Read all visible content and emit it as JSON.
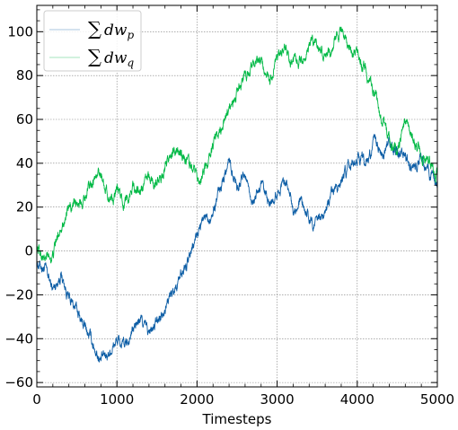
{
  "chart_data": {
    "type": "line",
    "title": "",
    "xlabel": "Timesteps",
    "ylabel": "",
    "xlim": [
      0,
      5000
    ],
    "ylim": [
      -62,
      112
    ],
    "x_ticks": [
      0,
      1000,
      2000,
      3000,
      4000,
      5000
    ],
    "y_ticks": [
      -60,
      -40,
      -20,
      0,
      20,
      40,
      60,
      80,
      100
    ],
    "grid": true,
    "grid_style": "dotted",
    "legend_position": "upper-left",
    "series": [
      {
        "name": "∑dw_p",
        "color": "#0c5da5",
        "points": [
          [
            0,
            -5
          ],
          [
            100,
            -8
          ],
          [
            200,
            -18
          ],
          [
            300,
            -10
          ],
          [
            400,
            -22
          ],
          [
            500,
            -27
          ],
          [
            600,
            -35
          ],
          [
            700,
            -42
          ],
          [
            800,
            -50
          ],
          [
            900,
            -46
          ],
          [
            1000,
            -41
          ],
          [
            1100,
            -44
          ],
          [
            1200,
            -36
          ],
          [
            1300,
            -31
          ],
          [
            1400,
            -38
          ],
          [
            1500,
            -33
          ],
          [
            1600,
            -24
          ],
          [
            1700,
            -19
          ],
          [
            1800,
            -10
          ],
          [
            1900,
            -5
          ],
          [
            2000,
            8
          ],
          [
            2100,
            15
          ],
          [
            2200,
            18
          ],
          [
            2300,
            30
          ],
          [
            2400,
            42
          ],
          [
            2500,
            30
          ],
          [
            2600,
            35
          ],
          [
            2700,
            22
          ],
          [
            2800,
            29
          ],
          [
            2900,
            20
          ],
          [
            3000,
            27
          ],
          [
            3100,
            33
          ],
          [
            3200,
            20
          ],
          [
            3300,
            22
          ],
          [
            3400,
            14
          ],
          [
            3500,
            12
          ],
          [
            3600,
            18
          ],
          [
            3700,
            25
          ],
          [
            3800,
            33
          ],
          [
            3900,
            38
          ],
          [
            4000,
            44
          ],
          [
            4100,
            40
          ],
          [
            4200,
            48
          ],
          [
            4300,
            45
          ],
          [
            4400,
            48
          ],
          [
            4500,
            45
          ],
          [
            4600,
            42
          ],
          [
            4700,
            38
          ],
          [
            4800,
            42
          ],
          [
            4900,
            36
          ],
          [
            5000,
            30
          ]
        ]
      },
      {
        "name": "∑dw_q",
        "color": "#00b945",
        "points": [
          [
            0,
            2
          ],
          [
            100,
            -4
          ],
          [
            200,
            -2
          ],
          [
            300,
            12
          ],
          [
            400,
            18
          ],
          [
            500,
            22
          ],
          [
            600,
            25
          ],
          [
            700,
            33
          ],
          [
            800,
            36
          ],
          [
            900,
            24
          ],
          [
            1000,
            27
          ],
          [
            1100,
            22
          ],
          [
            1200,
            30
          ],
          [
            1300,
            27
          ],
          [
            1400,
            34
          ],
          [
            1500,
            30
          ],
          [
            1600,
            38
          ],
          [
            1700,
            45
          ],
          [
            1800,
            45
          ],
          [
            1900,
            40
          ],
          [
            2000,
            32
          ],
          [
            2100,
            38
          ],
          [
            2200,
            48
          ],
          [
            2300,
            56
          ],
          [
            2400,
            65
          ],
          [
            2500,
            72
          ],
          [
            2600,
            80
          ],
          [
            2700,
            84
          ],
          [
            2800,
            86
          ],
          [
            2900,
            76
          ],
          [
            3000,
            87
          ],
          [
            3100,
            92
          ],
          [
            3200,
            83
          ],
          [
            3300,
            86
          ],
          [
            3400,
            92
          ],
          [
            3500,
            96
          ],
          [
            3600,
            88
          ],
          [
            3700,
            95
          ],
          [
            3800,
            100
          ],
          [
            3900,
            92
          ],
          [
            4000,
            88
          ],
          [
            4100,
            82
          ],
          [
            4200,
            75
          ],
          [
            4300,
            60
          ],
          [
            4400,
            52
          ],
          [
            4500,
            45
          ],
          [
            4600,
            58
          ],
          [
            4700,
            48
          ],
          [
            4800,
            45
          ],
          [
            4900,
            40
          ],
          [
            5000,
            34
          ]
        ]
      }
    ]
  }
}
